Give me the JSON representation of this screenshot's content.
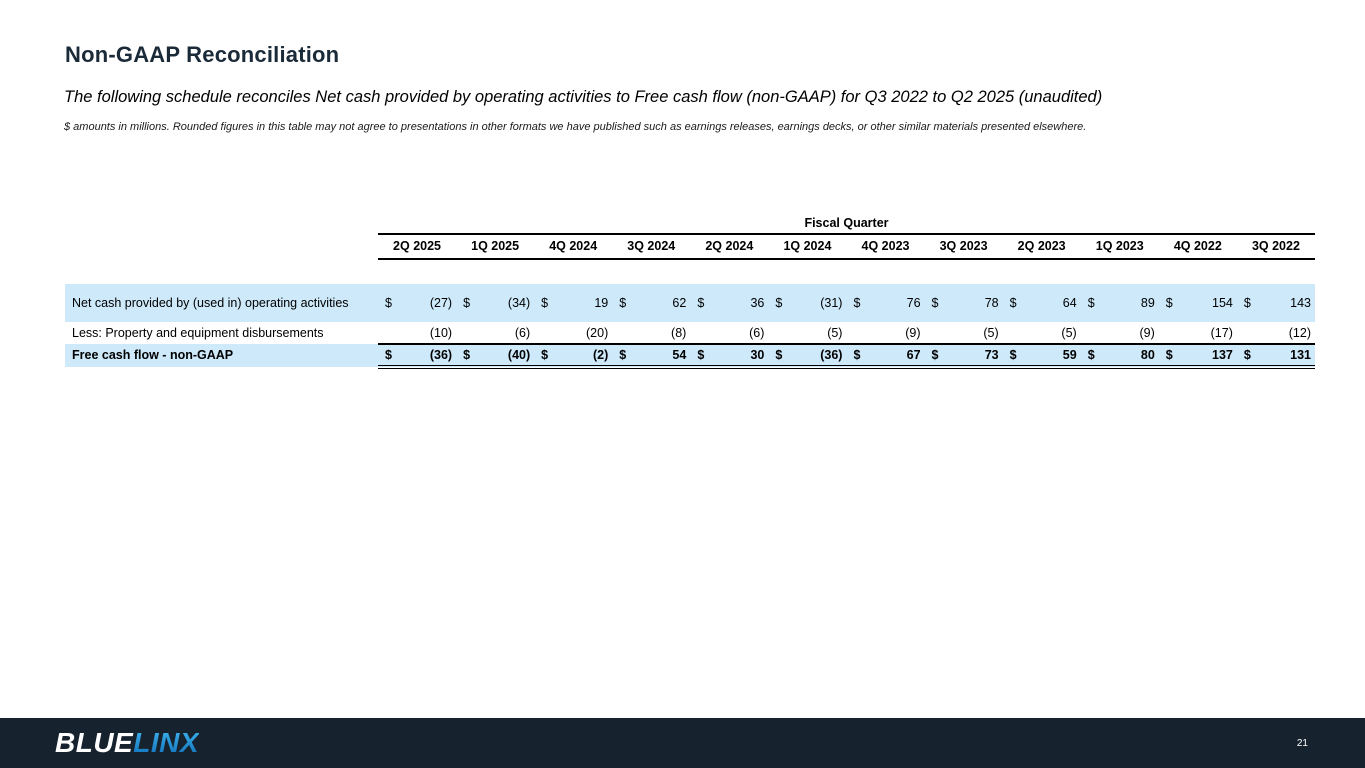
{
  "slide": {
    "title": "Non-GAAP Reconciliation",
    "subtitle": "The following schedule reconciles Net cash provided by operating activities to Free cash flow (non-GAAP) for Q3 2022 to Q2 2025 (unaudited)",
    "footnote": "$ amounts in millions.  Rounded figures in this table may not agree to presentations in other formats we have published such as earnings releases, earnings decks, or other similar materials presented elsewhere."
  },
  "table": {
    "group_header": "Fiscal Quarter",
    "columns": [
      "2Q 2025",
      "1Q 2025",
      "4Q 2024",
      "3Q 2024",
      "2Q 2024",
      "1Q 2024",
      "4Q 2023",
      "3Q 2023",
      "2Q 2023",
      "1Q 2023",
      "4Q 2022",
      "3Q 2022"
    ],
    "rows": [
      {
        "label": "Net cash provided by (used in) operating activities",
        "dollar": true,
        "bold": false,
        "highlight": true,
        "values": [
          "(27)",
          "(34)",
          "19",
          "62",
          "36",
          "(31)",
          "76",
          "78",
          "64",
          "89",
          "154",
          "143"
        ]
      },
      {
        "label": "Less: Property and equipment disbursements",
        "dollar": false,
        "bold": false,
        "highlight": false,
        "values": [
          "(10)",
          "(6)",
          "(20)",
          "(8)",
          "(6)",
          "(5)",
          "(9)",
          "(5)",
          "(5)",
          "(9)",
          "(17)",
          "(12)"
        ]
      },
      {
        "label": "Free cash flow - non-GAAP",
        "dollar": true,
        "bold": true,
        "highlight": true,
        "values": [
          "(36)",
          "(40)",
          "(2)",
          "54",
          "30",
          "(36)",
          "67",
          "73",
          "59",
          "80",
          "137",
          "131"
        ]
      }
    ]
  },
  "footer": {
    "logo_part1": "BLUE",
    "logo_part2": "LINX",
    "page_number": "21"
  },
  "colors": {
    "highlight_row": "#cde9fa",
    "footer_background": "#16222e",
    "logo_accent": "#1f97d8",
    "title_text": "#1b2a38"
  }
}
